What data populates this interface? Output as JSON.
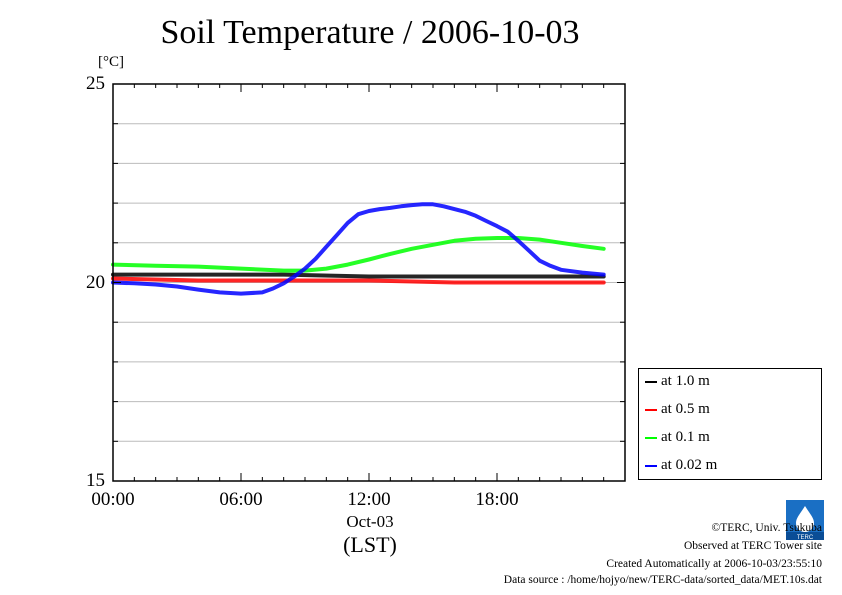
{
  "title": "Soil Temperature / 2006-10-03",
  "unit_label": "[°C]",
  "x_date_label": "Oct-03",
  "x_axis_label": "(LST)",
  "footer": {
    "copyright": "©TERC, Univ. Tsukuba",
    "site": "Observed at TERC Tower site",
    "created": "Created Automatically at 2006-10-03/23:55:10",
    "source": "Data source : /home/hojyo/new/TERC-data/sorted_data/MET.10s.dat"
  },
  "logo_text": "TERC",
  "chart_data": {
    "type": "line",
    "title": "Soil Temperature / 2006-10-03",
    "xlabel": "(LST)",
    "ylabel": "[°C]",
    "xlim": [
      0,
      23
    ],
    "ylim": [
      15,
      25
    ],
    "x_ticks": [
      "00:00",
      "06:00",
      "12:00",
      "18:00"
    ],
    "y_ticks": [
      "15",
      "20",
      "25"
    ],
    "grid": true,
    "legend_position": "bottom-right",
    "series": [
      {
        "name": "at 1.0 m",
        "color": "#000000",
        "x": [
          0,
          4,
          8,
          12,
          16,
          20,
          23
        ],
        "values": [
          20.2,
          20.2,
          20.2,
          20.15,
          20.15,
          20.15,
          20.15
        ]
      },
      {
        "name": "at 0.5 m",
        "color": "#ff0000",
        "x": [
          0,
          4,
          8,
          12,
          16,
          20,
          23
        ],
        "values": [
          20.1,
          20.05,
          20.05,
          20.05,
          20.0,
          20.0,
          20.0
        ]
      },
      {
        "name": "at 0.1 m",
        "color": "#00ff00",
        "x": [
          0,
          2,
          4,
          6,
          8,
          9,
          10,
          11,
          12,
          13,
          14,
          15,
          16,
          17,
          18,
          19,
          20,
          21,
          22,
          23
        ],
        "values": [
          20.45,
          20.42,
          20.4,
          20.35,
          20.3,
          20.3,
          20.35,
          20.45,
          20.58,
          20.72,
          20.85,
          20.95,
          21.05,
          21.1,
          21.12,
          21.12,
          21.08,
          21.0,
          20.92,
          20.85
        ]
      },
      {
        "name": "at 0.02 m",
        "color": "#0000ff",
        "x": [
          0,
          1,
          2,
          3,
          4,
          5,
          6,
          7,
          7.5,
          8,
          8.5,
          9,
          9.5,
          10,
          10.5,
          11,
          11.5,
          12,
          12.5,
          13,
          13.5,
          14,
          14.5,
          15,
          15.5,
          16,
          16.5,
          17,
          17.5,
          18,
          18.5,
          19,
          19.5,
          20,
          20.5,
          21,
          22,
          23
        ],
        "values": [
          20.0,
          19.98,
          19.95,
          19.9,
          19.82,
          19.75,
          19.72,
          19.75,
          19.85,
          19.98,
          20.15,
          20.35,
          20.6,
          20.9,
          21.2,
          21.5,
          21.72,
          21.8,
          21.85,
          21.88,
          21.92,
          21.95,
          21.97,
          21.97,
          21.92,
          21.85,
          21.78,
          21.68,
          21.55,
          21.42,
          21.28,
          21.05,
          20.8,
          20.55,
          20.42,
          20.32,
          20.25,
          20.2
        ]
      }
    ]
  }
}
